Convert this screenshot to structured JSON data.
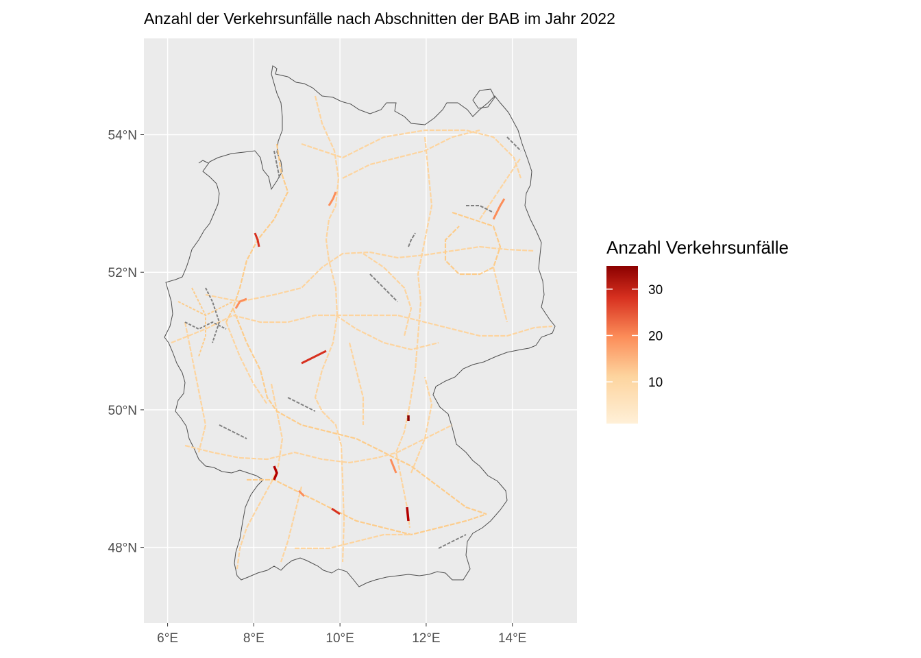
{
  "chart_data": {
    "type": "map",
    "title": "Anzahl der Verkehrsunfälle nach Abschnitten der BAB im Jahr 2022",
    "xlabel": "",
    "ylabel": "",
    "x_ticks": [
      "6°E",
      "8°E",
      "10°E",
      "12°E",
      "14°E"
    ],
    "y_ticks": [
      "54°N",
      "52°N",
      "50°N",
      "48°N"
    ],
    "xlim": [
      5.45,
      15.5
    ],
    "ylim": [
      46.9,
      55.4
    ],
    "grid": true,
    "legend": {
      "title": "Anzahl Verkehrsunfälle",
      "labels": [
        "30",
        "20",
        "10"
      ],
      "range": [
        1,
        35
      ],
      "position": "right",
      "colors": [
        "#fff0d8",
        "#fdd49e",
        "#fc8d59",
        "#d7301f",
        "#8b0000"
      ]
    }
  },
  "colors": {
    "panel_background": "#ebebeb",
    "grid_line": "#ffffff",
    "outline": "#4d4d4d",
    "missing_segment": "#7f7f7f",
    "low": "#fdd49e",
    "mid": "#fc8d59",
    "high": "#b30000"
  }
}
